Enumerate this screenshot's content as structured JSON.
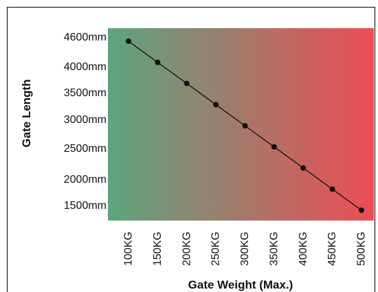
{
  "colors": {
    "gradient_left": "#5ca57e",
    "gradient_right": "#ee4c54",
    "line": "#111111",
    "marker": "#111111",
    "frame": "#000000"
  },
  "chart_data": {
    "type": "line",
    "title": "",
    "xlabel": "Gate Weight (Max.)",
    "ylabel": "Gate Length",
    "x": [
      100,
      150,
      200,
      250,
      300,
      350,
      400,
      450,
      500
    ],
    "x_tick_labels": [
      "100KG",
      "150KG",
      "200KG",
      "250KG",
      "300KG",
      "350KG",
      "400KG",
      "450KG",
      "500KG"
    ],
    "y_tick_labels": [
      "4600mm",
      "4000mm",
      "3500mm",
      "3000mm",
      "2500mm",
      "2000mm",
      "1500mm"
    ],
    "series": [
      {
        "values": [
          4400,
          4000,
          3600,
          3200,
          2800,
          2400,
          2000,
          1600,
          1200
        ]
      }
    ],
    "grid": false,
    "legend": "none",
    "background": "green-to-red horizontal gradient"
  }
}
